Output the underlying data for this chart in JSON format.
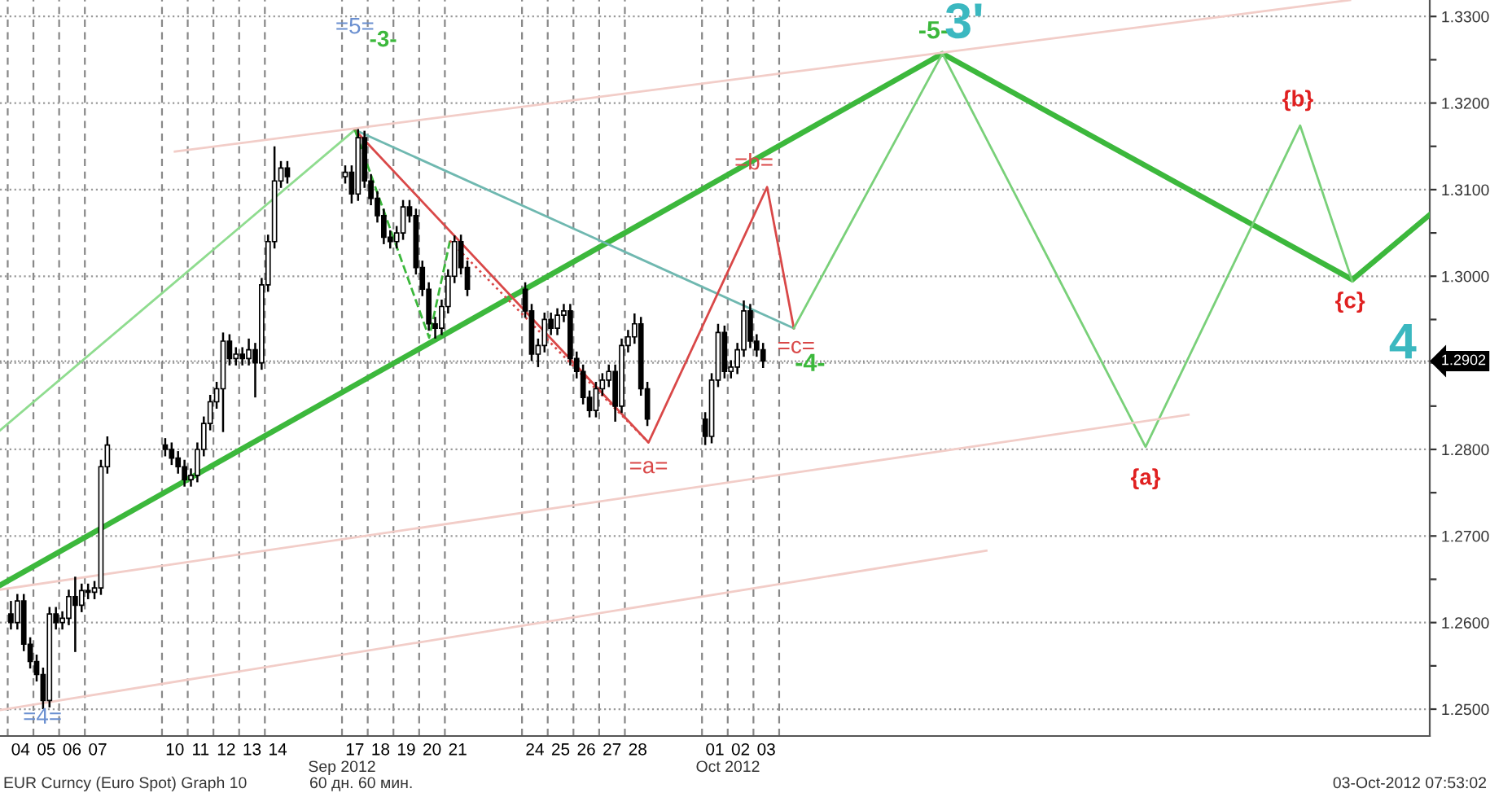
{
  "chart_data": {
    "type": "candlestick",
    "x": [
      "2012-09-04T03:00",
      "2012-09-04T09:00",
      "2012-09-04T15:00",
      "2012-09-04T21:00",
      "2012-09-05T03:00",
      "2012-09-05T09:00",
      "2012-09-05T15:00",
      "2012-09-05T21:00",
      "2012-09-06T03:00",
      "2012-09-06T09:00",
      "2012-09-06T15:00",
      "2012-09-06T21:00",
      "2012-09-07T03:00",
      "2012-09-07T09:00",
      "2012-09-07T15:00",
      "2012-09-07T21:00",
      "2012-09-10T03:00",
      "2012-09-10T09:00",
      "2012-09-10T15:00",
      "2012-09-10T21:00",
      "2012-09-11T03:00",
      "2012-09-11T09:00",
      "2012-09-11T15:00",
      "2012-09-11T21:00",
      "2012-09-12T03:00",
      "2012-09-12T09:00",
      "2012-09-12T15:00",
      "2012-09-12T21:00",
      "2012-09-13T03:00",
      "2012-09-13T09:00",
      "2012-09-13T15:00",
      "2012-09-13T21:00",
      "2012-09-14T03:00",
      "2012-09-14T09:00",
      "2012-09-14T15:00",
      "2012-09-14T21:00",
      "2012-09-17T03:00",
      "2012-09-17T09:00",
      "2012-09-17T15:00",
      "2012-09-17T21:00",
      "2012-09-18T03:00",
      "2012-09-18T09:00",
      "2012-09-18T15:00",
      "2012-09-18T21:00",
      "2012-09-19T03:00",
      "2012-09-19T09:00",
      "2012-09-19T15:00",
      "2012-09-19T21:00",
      "2012-09-20T03:00",
      "2012-09-20T09:00",
      "2012-09-20T15:00",
      "2012-09-20T21:00",
      "2012-09-21T03:00",
      "2012-09-21T09:00",
      "2012-09-21T15:00",
      "2012-09-21T21:00",
      "2012-09-24T03:00",
      "2012-09-24T09:00",
      "2012-09-24T15:00",
      "2012-09-24T21:00",
      "2012-09-25T03:00",
      "2012-09-25T09:00",
      "2012-09-25T15:00",
      "2012-09-25T21:00",
      "2012-09-26T03:00",
      "2012-09-26T09:00",
      "2012-09-26T15:00",
      "2012-09-26T21:00",
      "2012-09-27T03:00",
      "2012-09-27T09:00",
      "2012-09-27T15:00",
      "2012-09-27T21:00",
      "2012-09-28T03:00",
      "2012-09-28T09:00",
      "2012-09-28T15:00",
      "2012-09-28T21:00",
      "2012-10-01T03:00",
      "2012-10-01T09:00",
      "2012-10-01T15:00",
      "2012-10-01T21:00",
      "2012-10-02T03:00",
      "2012-10-02T09:00",
      "2012-10-02T15:00",
      "2012-10-02T21:00",
      "2012-10-03T03:00",
      "2012-10-03T09:00"
    ],
    "ohlc": [
      [
        1.261,
        1.2625,
        1.2592,
        1.26
      ],
      [
        1.26,
        1.2633,
        1.2592,
        1.2625
      ],
      [
        1.2625,
        1.2633,
        1.2567,
        1.2575
      ],
      [
        1.2575,
        1.2583,
        1.2547,
        1.2555
      ],
      [
        1.2555,
        1.2563,
        1.2532,
        1.254
      ],
      [
        1.254,
        1.2548,
        1.25,
        1.251
      ],
      [
        1.251,
        1.2618,
        1.2502,
        1.261
      ],
      [
        1.261,
        1.2618,
        1.2592,
        1.26
      ],
      [
        1.26,
        1.2613,
        1.2592,
        1.2605
      ],
      [
        1.2605,
        1.2638,
        1.2597,
        1.263
      ],
      [
        1.263,
        1.2653,
        1.2566,
        1.262
      ],
      [
        1.262,
        1.2645,
        1.2612,
        1.2637
      ],
      [
        1.2637,
        1.2645,
        1.2627,
        1.2635
      ],
      [
        1.2635,
        1.2648,
        1.2627,
        1.264
      ],
      [
        1.264,
        1.2788,
        1.2632,
        1.278
      ],
      [
        1.278,
        1.2815,
        1.2772,
        1.2805
      ],
      [
        1.2805,
        1.2813,
        1.2792,
        1.28
      ],
      [
        1.28,
        1.2808,
        1.2782,
        1.279
      ],
      [
        1.279,
        1.2798,
        1.2772,
        1.278
      ],
      [
        1.278,
        1.2788,
        1.2757,
        1.2765
      ],
      [
        1.2765,
        1.2778,
        1.2757,
        1.277
      ],
      [
        1.277,
        1.2808,
        1.2762,
        1.28
      ],
      [
        1.28,
        1.2838,
        1.2792,
        1.283
      ],
      [
        1.283,
        1.2863,
        1.2822,
        1.2855
      ],
      [
        1.2855,
        1.2878,
        1.2847,
        1.287
      ],
      [
        1.287,
        1.2935,
        1.282,
        1.2925
      ],
      [
        1.2925,
        1.2933,
        1.2897,
        1.2905
      ],
      [
        1.2905,
        1.2918,
        1.2897,
        1.291
      ],
      [
        1.291,
        1.2918,
        1.2897,
        1.2905
      ],
      [
        1.2905,
        1.2928,
        1.2897,
        1.2915
      ],
      [
        1.2915,
        1.2923,
        1.286,
        1.29
      ],
      [
        1.29,
        1.2998,
        1.2892,
        1.299
      ],
      [
        1.299,
        1.3048,
        1.2982,
        1.304
      ],
      [
        1.304,
        1.315,
        1.3032,
        1.311
      ],
      [
        1.311,
        1.3133,
        1.3102,
        1.3125
      ],
      [
        1.3125,
        1.3133,
        1.3107,
        1.3115
      ],
      [
        1.3115,
        1.3128,
        1.3107,
        1.312
      ],
      [
        1.312,
        1.3128,
        1.3084,
        1.3095
      ],
      [
        1.3095,
        1.317,
        1.3087,
        1.316
      ],
      [
        1.316,
        1.3168,
        1.3102,
        1.311
      ],
      [
        1.311,
        1.3118,
        1.3082,
        1.309
      ],
      [
        1.309,
        1.3098,
        1.3062,
        1.307
      ],
      [
        1.307,
        1.3078,
        1.3037,
        1.3045
      ],
      [
        1.3045,
        1.3053,
        1.3032,
        1.304
      ],
      [
        1.304,
        1.3058,
        1.3032,
        1.305
      ],
      [
        1.305,
        1.3088,
        1.3042,
        1.308
      ],
      [
        1.308,
        1.3088,
        1.3062,
        1.307
      ],
      [
        1.307,
        1.3078,
        1.3002,
        1.301
      ],
      [
        1.301,
        1.3018,
        1.2977,
        1.2985
      ],
      [
        1.2985,
        1.2993,
        1.2937,
        1.2945
      ],
      [
        1.2945,
        1.2953,
        1.2928,
        1.294
      ],
      [
        1.294,
        1.2973,
        1.2932,
        1.2965
      ],
      [
        1.2965,
        1.3008,
        1.2957,
        1.3
      ],
      [
        1.3,
        1.3047,
        1.2992,
        1.304
      ],
      [
        1.304,
        1.3048,
        1.3002,
        1.301
      ],
      [
        1.301,
        1.3018,
        1.2977,
        1.2985
      ],
      [
        1.2985,
        1.2993,
        1.2952,
        1.296
      ],
      [
        1.296,
        1.2968,
        1.2902,
        1.291
      ],
      [
        1.291,
        1.2928,
        1.2895,
        1.292
      ],
      [
        1.292,
        1.2958,
        1.2912,
        1.295
      ],
      [
        1.295,
        1.2958,
        1.2932,
        1.294
      ],
      [
        1.294,
        1.2963,
        1.2932,
        1.2955
      ],
      [
        1.2955,
        1.2968,
        1.2947,
        1.296
      ],
      [
        1.296,
        1.2968,
        1.2897,
        1.2905
      ],
      [
        1.2905,
        1.2913,
        1.2882,
        1.289
      ],
      [
        1.289,
        1.2898,
        1.2852,
        1.286
      ],
      [
        1.286,
        1.2868,
        1.2837,
        1.2845
      ],
      [
        1.2845,
        1.2878,
        1.2837,
        1.287
      ],
      [
        1.287,
        1.2888,
        1.2862,
        1.288
      ],
      [
        1.288,
        1.2898,
        1.2872,
        1.289
      ],
      [
        1.289,
        1.2898,
        1.2832,
        1.285
      ],
      [
        1.285,
        1.2928,
        1.2842,
        1.292
      ],
      [
        1.292,
        1.2938,
        1.2912,
        1.293
      ],
      [
        1.293,
        1.2957,
        1.2922,
        1.2945
      ],
      [
        1.2945,
        1.2953,
        1.2862,
        1.287
      ],
      [
        1.287,
        1.2878,
        1.2827,
        1.2835
      ],
      [
        1.2835,
        1.2843,
        1.2805,
        1.2815
      ],
      [
        1.2815,
        1.2888,
        1.2807,
        1.288
      ],
      [
        1.288,
        1.2945,
        1.2872,
        1.2935
      ],
      [
        1.2935,
        1.2943,
        1.2882,
        1.289
      ],
      [
        1.289,
        1.2903,
        1.2882,
        1.2895
      ],
      [
        1.2895,
        1.2923,
        1.2887,
        1.2915
      ],
      [
        1.2915,
        1.2972,
        1.2907,
        1.296
      ],
      [
        1.296,
        1.2968,
        1.2917,
        1.2925
      ],
      [
        1.2925,
        1.2933,
        1.2907,
        1.2915
      ],
      [
        1.2915,
        1.2923,
        1.2894,
        1.2902
      ]
    ],
    "series": [
      {
        "type": "line",
        "color": "#3cb83c",
        "x": [
          "2012-09-03T16:48",
          "2012-10-10T08:24",
          "2012-10-26T07:00",
          "2012-10-29T07:12"
        ],
        "values": [
          1.2643,
          1.3257,
          1.2996,
          1.3071
        ]
      },
      {
        "type": "line",
        "color": "#8fdc8f",
        "x": [
          "2012-09-03T16:48",
          "2012-09-17T12:00"
        ],
        "values": [
          1.2822,
          1.3169
        ]
      },
      {
        "type": "line",
        "color": "#6fb8b0",
        "x": [
          "2012-09-17T12:00",
          "2012-10-04T13:40"
        ],
        "values": [
          1.3169,
          1.294
        ]
      },
      {
        "type": "line",
        "color": "#d94848",
        "x": [
          "2012-09-17T12:00",
          "2012-09-28T22:05",
          "2012-10-03T12:45",
          "2012-10-04T13:40"
        ],
        "values": [
          1.3169,
          1.2808,
          1.3103,
          1.294
        ]
      },
      {
        "type": "line",
        "color": "#79d079",
        "x": [
          "2012-10-04T13:40",
          "2012-10-10T08:24",
          "2012-10-18T06:00",
          "2012-10-24T06:15",
          "2012-10-26T07:00"
        ],
        "values": [
          1.294,
          1.3257,
          1.2803,
          1.3174,
          1.2994
        ]
      },
      {
        "type": "line",
        "color": "#3cb83c",
        "line_style": "dashed",
        "x": [
          "2012-09-17T12:00",
          "2012-09-20T09:20",
          "2012-09-21T04:48"
        ],
        "values": [
          1.3169,
          1.2929,
          1.3041
        ]
      },
      {
        "type": "line",
        "color": "#d94848",
        "line_style": "dotted",
        "x": [
          "2012-09-21T04:48",
          "2012-09-28T22:05"
        ],
        "values": [
          1.3041,
          1.2808
        ]
      },
      {
        "type": "line",
        "color": "#f2cdc8",
        "x": [
          "2012-09-10T12:00",
          "2012-10-26T04:48"
        ],
        "values": [
          1.3144,
          1.3319
        ]
      },
      {
        "type": "line",
        "color": "#f2cdc8",
        "x": [
          "2012-09-03T16:48",
          "2012-10-19T22:05"
        ],
        "values": [
          1.2638,
          1.284
        ]
      },
      {
        "type": "line",
        "color": "#f2cdc8",
        "x": [
          "2012-09-03T16:48",
          "2012-10-12T01:25"
        ],
        "values": [
          1.2499,
          1.2683
        ]
      }
    ],
    "xlim": [
      "2012-09-03T16:48",
      "2012-10-29T07:12"
    ],
    "xticks": [
      {
        "value": "2012-09-04T00:00",
        "label": null
      },
      {
        "value": "2012-09-04T12:00",
        "label": "04"
      },
      {
        "value": "2012-09-05T00:00",
        "label": null
      },
      {
        "value": "2012-09-05T12:00",
        "label": "05"
      },
      {
        "value": "2012-09-06T00:00",
        "label": null
      },
      {
        "value": "2012-09-06T12:00",
        "label": "06"
      },
      {
        "value": "2012-09-07T00:00",
        "label": null
      },
      {
        "value": "2012-09-07T12:00",
        "label": "07"
      },
      {
        "value": "2012-09-10T00:00",
        "label": null
      },
      {
        "value": "2012-09-10T12:00",
        "label": "10"
      },
      {
        "value": "2012-09-11T00:00",
        "label": null
      },
      {
        "value": "2012-09-11T12:00",
        "label": "11"
      },
      {
        "value": "2012-09-12T00:00",
        "label": null
      },
      {
        "value": "2012-09-12T12:00",
        "label": "12"
      },
      {
        "value": "2012-09-13T00:00",
        "label": null
      },
      {
        "value": "2012-09-13T12:00",
        "label": "13"
      },
      {
        "value": "2012-09-14T00:00",
        "label": null
      },
      {
        "value": "2012-09-14T12:00",
        "label": "14"
      },
      {
        "value": "2012-09-17T00:00",
        "label": null
      },
      {
        "value": "2012-09-17T12:00",
        "label": "17"
      },
      {
        "value": "2012-09-18T00:00",
        "label": null
      },
      {
        "value": "2012-09-18T12:00",
        "label": "18"
      },
      {
        "value": "2012-09-19T00:00",
        "label": null
      },
      {
        "value": "2012-09-19T12:00",
        "label": "19"
      },
      {
        "value": "2012-09-20T00:00",
        "label": null
      },
      {
        "value": "2012-09-20T12:00",
        "label": "20"
      },
      {
        "value": "2012-09-21T00:00",
        "label": null
      },
      {
        "value": "2012-09-21T12:00",
        "label": "21"
      },
      {
        "value": "2012-09-24T00:00",
        "label": null
      },
      {
        "value": "2012-09-24T12:00",
        "label": "24"
      },
      {
        "value": "2012-09-25T00:00",
        "label": null
      },
      {
        "value": "2012-09-25T12:00",
        "label": "25"
      },
      {
        "value": "2012-09-26T00:00",
        "label": null
      },
      {
        "value": "2012-09-26T12:00",
        "label": "26"
      },
      {
        "value": "2012-09-27T00:00",
        "label": null
      },
      {
        "value": "2012-09-27T12:00",
        "label": "27"
      },
      {
        "value": "2012-09-28T00:00",
        "label": null
      },
      {
        "value": "2012-09-28T12:00",
        "label": "28"
      },
      {
        "value": "2012-10-01T00:00",
        "label": null
      },
      {
        "value": "2012-10-01T12:00",
        "label": "01"
      },
      {
        "value": "2012-10-02T00:00",
        "label": null
      },
      {
        "value": "2012-10-02T12:00",
        "label": "02"
      },
      {
        "value": "2012-10-03T00:00",
        "label": null
      },
      {
        "value": "2012-10-03T12:00",
        "label": "03"
      },
      {
        "value": "2012-10-04T00:00",
        "label": null
      }
    ],
    "ylim": [
      1.2469,
      1.3319
    ],
    "yticks": [
      {
        "value": 1.25,
        "label": "1.2500"
      },
      {
        "value": 1.255,
        "label": null
      },
      {
        "value": 1.26,
        "label": "1.2600"
      },
      {
        "value": 1.265,
        "label": null
      },
      {
        "value": 1.27,
        "label": "1.2700"
      },
      {
        "value": 1.275,
        "label": null
      },
      {
        "value": 1.28,
        "label": "1.2800"
      },
      {
        "value": 1.285,
        "label": null
      },
      {
        "value": 1.29,
        "label": null
      },
      {
        "value": 1.295,
        "label": null
      },
      {
        "value": 1.3,
        "label": "1.3000"
      },
      {
        "value": 1.305,
        "label": null
      },
      {
        "value": 1.31,
        "label": "1.3100"
      },
      {
        "value": 1.315,
        "label": null
      },
      {
        "value": 1.32,
        "label": "1.3200"
      },
      {
        "value": 1.325,
        "label": null
      },
      {
        "value": 1.33,
        "label": "1.3300"
      }
    ],
    "ref_lines": [
      {
        "axis": "y",
        "value": 1.2902,
        "label": "1.2902"
      }
    ],
    "grid": true,
    "annotations": [
      "=5=",
      "-3-",
      "=4=",
      {
        "text": "=a=",
        "x": "2012-09-28T22:05",
        "y": 1.2808
      },
      "=b=",
      "=c=",
      "-4-",
      "-5-",
      "3'",
      "{a}",
      "{b}",
      "{c}",
      "4",
      "Sep 2012",
      "Oct 2012",
      "EUR Curncy (Euro Spot) Graph 10",
      "60 дн. 60 мин.",
      "03-Oct-2012 07:53:02"
    ]
  }
}
